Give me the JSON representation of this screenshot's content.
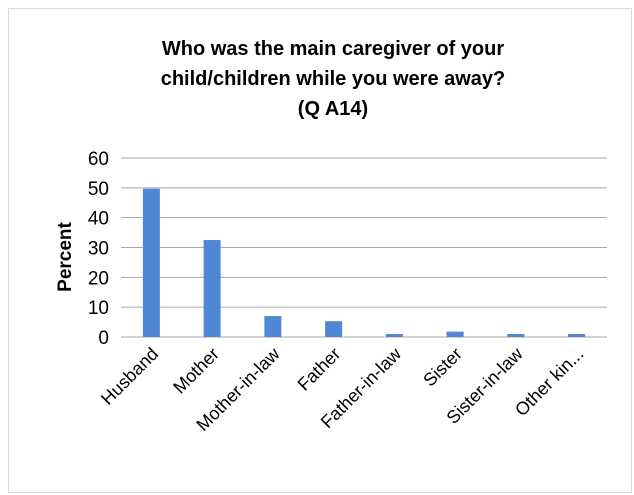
{
  "chart_data": {
    "type": "bar",
    "title_lines": [
      "Who was the main caregiver of your",
      "child/children while you were away?",
      "(Q A14)"
    ],
    "xlabel": "",
    "ylabel": "Percent",
    "ylim": [
      0,
      60
    ],
    "yticks": [
      "0",
      "10",
      "20",
      "30",
      "40",
      "50",
      "60"
    ],
    "categories": [
      "Husband",
      "Mother",
      "Mother-in-law",
      "Father",
      "Father-in-law",
      "Sister",
      "Sister-in-law",
      "Other kin..."
    ],
    "values": [
      49.7,
      32.5,
      7.0,
      5.3,
      1.0,
      1.8,
      1.0,
      1.0
    ],
    "bar_color": "#4f86d6",
    "grid": true,
    "legend": "none"
  }
}
